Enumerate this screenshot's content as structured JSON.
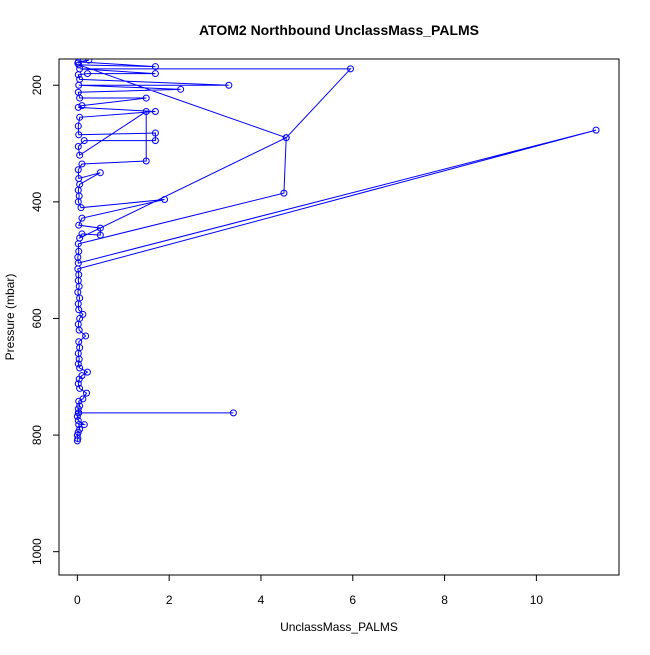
{
  "chart_data": {
    "type": "line",
    "title": "ATOM2 Northbound UnclassMass_PALMS",
    "xlabel": "UnclassMass_PALMS",
    "ylabel": "Pressure (mbar)",
    "xlim": [
      -0.4,
      11.8
    ],
    "ylim": [
      1040,
      155
    ],
    "y_reversed": true,
    "x_ticks": [
      0,
      2,
      4,
      6,
      8,
      10
    ],
    "y_ticks": [
      200,
      400,
      600,
      800,
      1000
    ],
    "grid": false,
    "legend": "none",
    "series": [
      {
        "color": "#0000ff",
        "marker": "open-circle",
        "points": [
          [
            0.0,
            810
          ],
          [
            0.01,
            806
          ],
          [
            0.0,
            800
          ],
          [
            0.02,
            795
          ],
          [
            0.05,
            790
          ],
          [
            0.03,
            782
          ],
          [
            0.15,
            782
          ],
          [
            0.02,
            775
          ],
          [
            0.0,
            768
          ],
          [
            0.02,
            762
          ],
          [
            3.4,
            762
          ],
          [
            0.03,
            762
          ],
          [
            0.02,
            755
          ],
          [
            0.05,
            750
          ],
          [
            0.03,
            742
          ],
          [
            0.12,
            738
          ],
          [
            0.2,
            728
          ],
          [
            0.05,
            720
          ],
          [
            0.02,
            712
          ],
          [
            0.04,
            704
          ],
          [
            0.1,
            698
          ],
          [
            0.22,
            692
          ],
          [
            0.05,
            685
          ],
          [
            0.02,
            678
          ],
          [
            0.04,
            670
          ],
          [
            0.02,
            660
          ],
          [
            0.05,
            650
          ],
          [
            0.03,
            640
          ],
          [
            0.18,
            630
          ],
          [
            0.04,
            620
          ],
          [
            0.02,
            610
          ],
          [
            0.05,
            600
          ],
          [
            0.12,
            593
          ],
          [
            0.03,
            585
          ],
          [
            0.02,
            575
          ],
          [
            0.05,
            565
          ],
          [
            0.01,
            555
          ],
          [
            0.04,
            545
          ],
          [
            0.02,
            535
          ],
          [
            0.03,
            525
          ],
          [
            0.01,
            515
          ],
          [
            11.3,
            277
          ],
          [
            0.02,
            505
          ],
          [
            0.01,
            495
          ],
          [
            0.03,
            485
          ],
          [
            0.02,
            472
          ],
          [
            4.5,
            385
          ],
          [
            4.55,
            290
          ],
          [
            0.05,
            462
          ],
          [
            0.1,
            455
          ],
          [
            0.5,
            457
          ],
          [
            0.5,
            445
          ],
          [
            0.03,
            440
          ],
          [
            0.1,
            428
          ],
          [
            1.9,
            396
          ],
          [
            0.08,
            410
          ],
          [
            0.02,
            400
          ],
          [
            0.04,
            390
          ],
          [
            0.02,
            380
          ],
          [
            0.05,
            370
          ],
          [
            0.5,
            350
          ],
          [
            0.03,
            360
          ],
          [
            0.02,
            345
          ],
          [
            0.1,
            335
          ],
          [
            1.5,
            330
          ],
          [
            1.5,
            245
          ],
          [
            0.05,
            320
          ],
          [
            0.02,
            305
          ],
          [
            0.15,
            295
          ],
          [
            1.7,
            295
          ],
          [
            1.7,
            282
          ],
          [
            0.03,
            285
          ],
          [
            0.02,
            270
          ],
          [
            0.05,
            255
          ],
          [
            1.7,
            245
          ],
          [
            0.02,
            238
          ],
          [
            0.1,
            235
          ],
          [
            1.5,
            222
          ],
          [
            0.05,
            222
          ],
          [
            0.02,
            212
          ],
          [
            2.25,
            207
          ],
          [
            0.03,
            200
          ],
          [
            3.3,
            200
          ],
          [
            0.05,
            190
          ],
          [
            0.02,
            182
          ],
          [
            0.22,
            180
          ],
          [
            1.7,
            180
          ],
          [
            0.05,
            172
          ],
          [
            5.95,
            172
          ],
          [
            4.55,
            290
          ],
          [
            0.03,
            165
          ],
          [
            1.7,
            168
          ],
          [
            0.02,
            160
          ],
          [
            0.25,
            157
          ],
          [
            0.01,
            162
          ]
        ]
      }
    ]
  }
}
